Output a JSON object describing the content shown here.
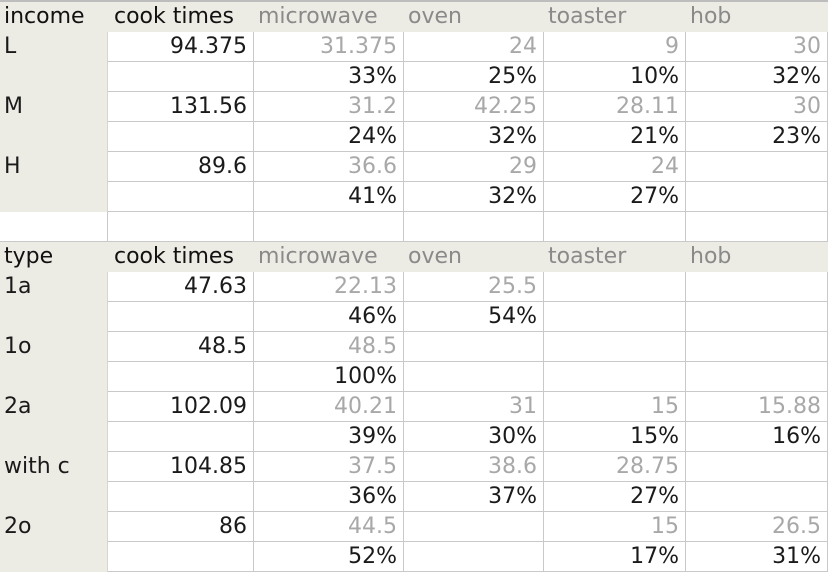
{
  "columns": [
    "microwave",
    "oven",
    "toaster",
    "hob"
  ],
  "sections": [
    {
      "header": [
        "income",
        "cook times",
        "microwave",
        "oven",
        "toaster",
        "hob"
      ],
      "rows": [
        [
          "L",
          "94.375",
          "31.375",
          "24",
          "9",
          "30"
        ],
        [
          "",
          "",
          "33%",
          "25%",
          "10%",
          "32%"
        ],
        [
          "M",
          "131.56",
          "31.2",
          "42.25",
          "28.11",
          "30"
        ],
        [
          "",
          "",
          "24%",
          "32%",
          "21%",
          "23%"
        ],
        [
          "H",
          "89.6",
          "36.6",
          "29",
          "24",
          ""
        ],
        [
          "",
          "",
          "41%",
          "32%",
          "27%",
          ""
        ]
      ]
    },
    {
      "header": [
        "type",
        "cook times",
        "microwave",
        "oven",
        "toaster",
        "hob"
      ],
      "rows": [
        [
          "1a",
          "47.63",
          "22.13",
          "25.5",
          "",
          ""
        ],
        [
          "",
          "",
          "46%",
          "54%",
          "",
          ""
        ],
        [
          "1o",
          "48.5",
          "48.5",
          "",
          "",
          ""
        ],
        [
          "",
          "",
          "100%",
          "",
          "",
          ""
        ],
        [
          "2a",
          "102.09",
          "40.21",
          "31",
          "15",
          "15.88"
        ],
        [
          "",
          "",
          "39%",
          "30%",
          "15%",
          "16%"
        ],
        [
          "with c",
          "104.85",
          "37.5",
          "38.6",
          "28.75",
          ""
        ],
        [
          "",
          "",
          "36%",
          "37%",
          "27%",
          ""
        ],
        [
          "2o",
          "86",
          "44.5",
          "",
          "15",
          "26.5"
        ],
        [
          "",
          "",
          "52%",
          "",
          "17%",
          "31%"
        ]
      ]
    }
  ],
  "colors": {
    "header_bg": "#ecebe4",
    "raw_text": "#a8a8a8",
    "pct_text": "#1a1a1a",
    "grid": "#c9c9c9"
  }
}
